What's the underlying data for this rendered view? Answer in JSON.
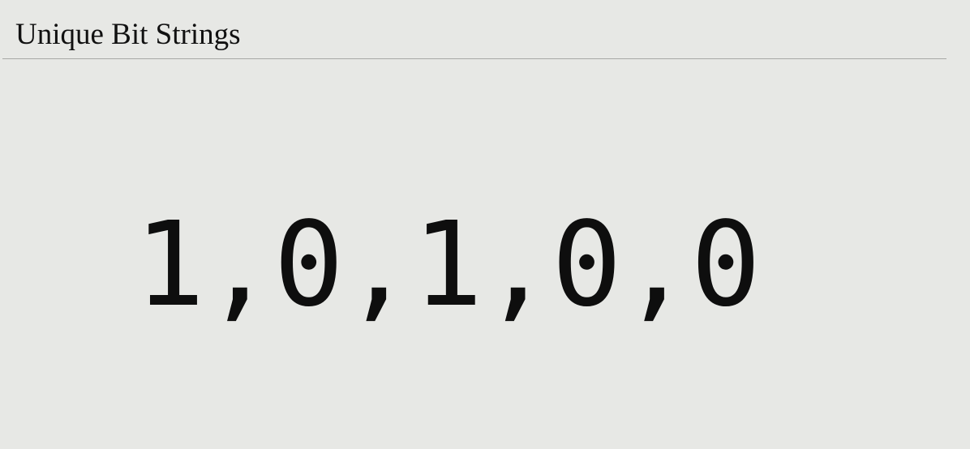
{
  "slide": {
    "title": "Unique Bit Strings",
    "sequence": "1,0,1,0,0"
  }
}
